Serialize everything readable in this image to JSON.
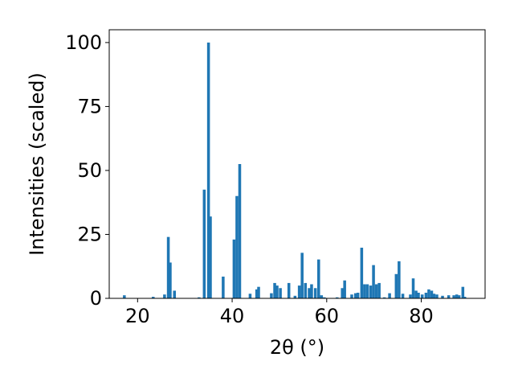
{
  "chart_data": {
    "type": "bar",
    "xlabel": "2θ (°)",
    "ylabel": "Intensities (scaled)",
    "xlim": [
      14,
      93.5
    ],
    "ylim": [
      0,
      105
    ],
    "xticks": [
      20,
      40,
      60,
      80
    ],
    "yticks": [
      0,
      25,
      50,
      75,
      100
    ],
    "bar_color": "#1f77b4",
    "bar_width": 0.6,
    "grid": false,
    "x": [
      17.2,
      23.3,
      25.7,
      26.5,
      26.9,
      27.8,
      33.0,
      34.1,
      35.0,
      35.4,
      38.1,
      40.4,
      41.0,
      41.6,
      43.8,
      45.2,
      45.6,
      48.3,
      49.0,
      49.5,
      50.2,
      52.0,
      53.3,
      54.2,
      54.8,
      55.5,
      56.3,
      56.8,
      57.6,
      58.3,
      58.9,
      59.5,
      62.2,
      63.3,
      63.8,
      65.3,
      66.1,
      66.6,
      67.4,
      68.0,
      68.6,
      69.3,
      69.9,
      70.5,
      71.1,
      72.2,
      73.3,
      74.7,
      75.3,
      76.1,
      77.7,
      78.3,
      78.9,
      79.4,
      80.2,
      81.0,
      81.6,
      82.2,
      82.7,
      83.3,
      84.5,
      85.8,
      86.9,
      87.5,
      88.0,
      88.8,
      89.2
    ],
    "values": [
      1.2,
      0.6,
      1.5,
      24,
      14,
      3,
      0.4,
      42.5,
      100,
      32,
      8.5,
      23,
      40,
      52.5,
      1.8,
      3.5,
      4.5,
      2,
      6,
      5,
      4,
      6,
      1,
      5,
      17.8,
      6,
      4,
      5.5,
      4,
      15.2,
      1.2,
      0.4,
      0.4,
      4,
      7,
      1.5,
      2,
      2.2,
      19.8,
      5.5,
      5.5,
      5,
      13,
      5.5,
      6,
      0.4,
      2,
      9.5,
      14.5,
      1.8,
      1.5,
      7.8,
      3,
      2.2,
      1.5,
      2.2,
      3.5,
      3,
      1.8,
      1.5,
      1,
      1.2,
      1.2,
      1.5,
      1.2,
      4.5,
      0.6
    ]
  }
}
